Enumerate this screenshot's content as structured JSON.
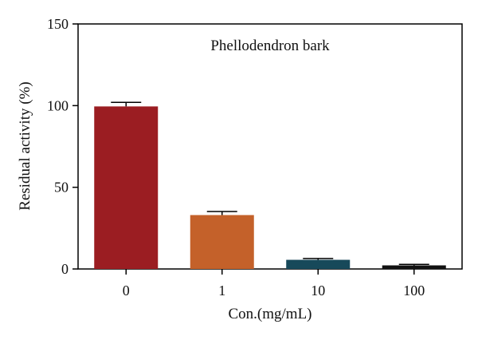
{
  "chart_data": {
    "type": "bar",
    "annotation": "Phellodendron bark",
    "xlabel": "Con.(mg/mL)",
    "ylabel": "Residual activity (%)",
    "categories": [
      "0",
      "1",
      "10",
      "100"
    ],
    "values": [
      99.5,
      33,
      5.6,
      2.2
    ],
    "errors": [
      2.5,
      2.2,
      0.8,
      0.6
    ],
    "colors": [
      "#9b1d22",
      "#c4612a",
      "#17495a",
      "#111111"
    ],
    "ylim": [
      0,
      150
    ],
    "yticks": [
      0,
      50,
      100,
      150
    ],
    "grid": false,
    "legend": "none"
  }
}
